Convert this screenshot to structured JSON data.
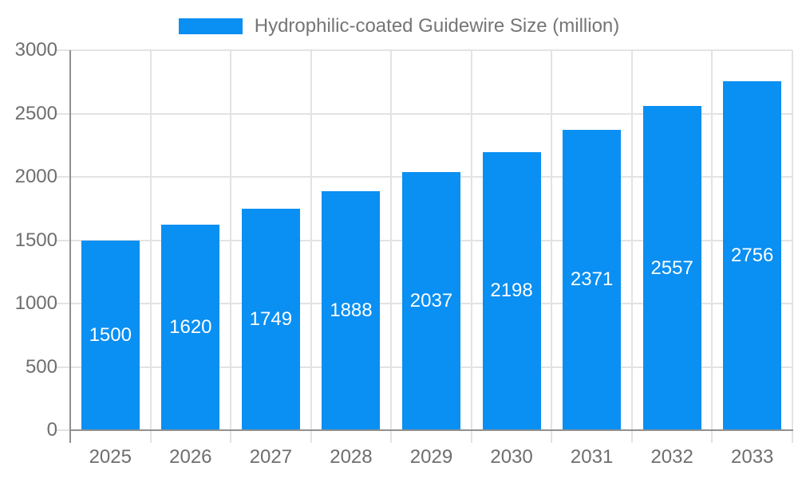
{
  "legend": {
    "label": "Hydrophilic-coated Guidewire Size (million)"
  },
  "chart_data": {
    "type": "bar",
    "title": "Hydrophilic-coated Guidewire Size (million)",
    "categories": [
      "2025",
      "2026",
      "2027",
      "2028",
      "2029",
      "2030",
      "2031",
      "2032",
      "2033"
    ],
    "values": [
      1500,
      1620,
      1749,
      1888,
      2037,
      2198,
      2371,
      2557,
      2756
    ],
    "value_labels": [
      "1500",
      "1620",
      "1749",
      "1888",
      "2037",
      "2198",
      "2371",
      "2557",
      "2756"
    ],
    "xlabel": "",
    "ylabel": "",
    "ylim": [
      0,
      3000
    ],
    "y_ticks": [
      0,
      500,
      1000,
      1500,
      2000,
      2500,
      3000
    ],
    "grid": true,
    "legend_position": "top-center",
    "colors": {
      "bar": "#0A8FF2",
      "grid": "#e3e3e3",
      "axis": "#909090",
      "tick_label": "#6e6e6e",
      "legend_text": "#757575",
      "value_label": "#ffffff",
      "background": "#ffffff"
    }
  }
}
